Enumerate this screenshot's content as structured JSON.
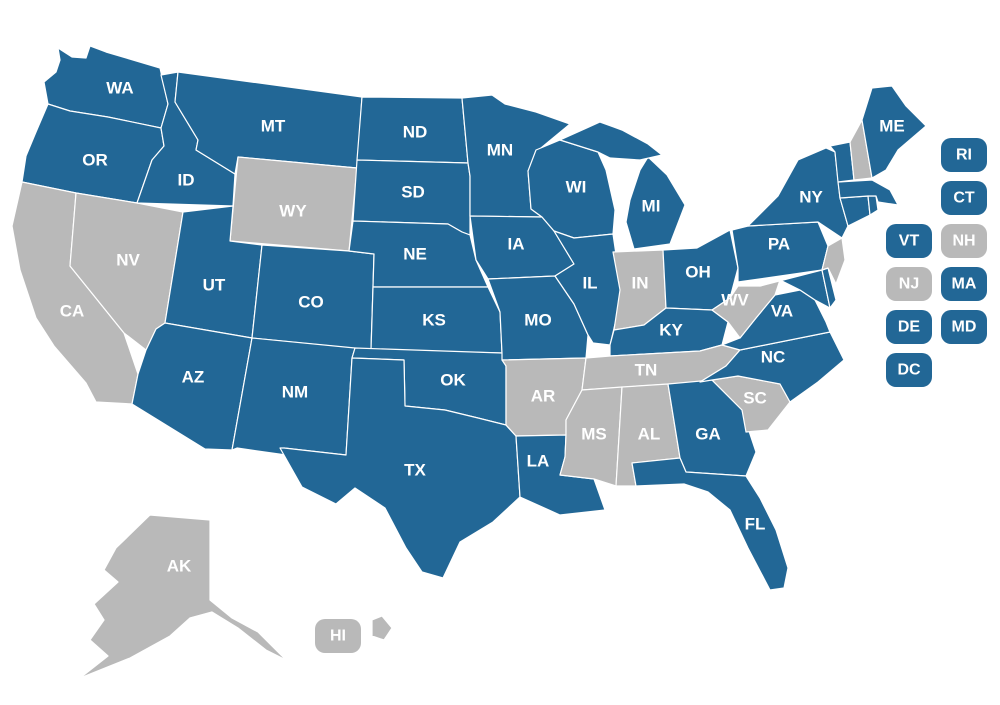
{
  "colors": {
    "highlighted": "#226796",
    "other": "#b9b9b9",
    "border": "#ffffff",
    "label": "#ffffff"
  },
  "states": {
    "WA": {
      "label": "WA",
      "status": "highlighted"
    },
    "OR": {
      "label": "OR",
      "status": "highlighted"
    },
    "CA": {
      "label": "CA",
      "status": "other"
    },
    "NV": {
      "label": "NV",
      "status": "other"
    },
    "ID": {
      "label": "ID",
      "status": "highlighted"
    },
    "MT": {
      "label": "MT",
      "status": "highlighted"
    },
    "WY": {
      "label": "WY",
      "status": "other"
    },
    "UT": {
      "label": "UT",
      "status": "highlighted"
    },
    "AZ": {
      "label": "AZ",
      "status": "highlighted"
    },
    "CO": {
      "label": "CO",
      "status": "highlighted"
    },
    "NM": {
      "label": "NM",
      "status": "highlighted"
    },
    "ND": {
      "label": "ND",
      "status": "highlighted"
    },
    "SD": {
      "label": "SD",
      "status": "highlighted"
    },
    "NE": {
      "label": "NE",
      "status": "highlighted"
    },
    "KS": {
      "label": "KS",
      "status": "highlighted"
    },
    "OK": {
      "label": "OK",
      "status": "highlighted"
    },
    "TX": {
      "label": "TX",
      "status": "highlighted"
    },
    "MN": {
      "label": "MN",
      "status": "highlighted"
    },
    "IA": {
      "label": "IA",
      "status": "highlighted"
    },
    "MO": {
      "label": "MO",
      "status": "highlighted"
    },
    "AR": {
      "label": "AR",
      "status": "other"
    },
    "LA": {
      "label": "LA",
      "status": "highlighted"
    },
    "WI": {
      "label": "WI",
      "status": "highlighted"
    },
    "IL": {
      "label": "IL",
      "status": "highlighted"
    },
    "MI": {
      "label": "MI",
      "status": "highlighted"
    },
    "IN": {
      "label": "IN",
      "status": "other"
    },
    "OH": {
      "label": "OH",
      "status": "highlighted"
    },
    "KY": {
      "label": "KY",
      "status": "highlighted"
    },
    "TN": {
      "label": "TN",
      "status": "other"
    },
    "MS": {
      "label": "MS",
      "status": "other"
    },
    "AL": {
      "label": "AL",
      "status": "other"
    },
    "GA": {
      "label": "GA",
      "status": "highlighted"
    },
    "FL": {
      "label": "FL",
      "status": "highlighted"
    },
    "SC": {
      "label": "SC",
      "status": "other"
    },
    "NC": {
      "label": "NC",
      "status": "highlighted"
    },
    "VA": {
      "label": "VA",
      "status": "highlighted"
    },
    "WV": {
      "label": "WV",
      "status": "other"
    },
    "PA": {
      "label": "PA",
      "status": "highlighted"
    },
    "NY": {
      "label": "NY",
      "status": "highlighted"
    },
    "ME": {
      "label": "ME",
      "status": "highlighted"
    },
    "NH": {
      "label": "NH",
      "status": "other"
    },
    "VT": {
      "label": "VT",
      "status": "highlighted"
    },
    "MA": {
      "label": "MA",
      "status": "highlighted"
    },
    "RI": {
      "label": "RI",
      "status": "highlighted"
    },
    "CT": {
      "label": "CT",
      "status": "highlighted"
    },
    "NJ": {
      "label": "NJ",
      "status": "other"
    },
    "DE": {
      "label": "DE",
      "status": "highlighted"
    },
    "MD": {
      "label": "MD",
      "status": "highlighted"
    },
    "DC": {
      "label": "DC",
      "status": "highlighted"
    },
    "AK": {
      "label": "AK",
      "status": "other"
    },
    "HI": {
      "label": "HI",
      "status": "other"
    }
  }
}
